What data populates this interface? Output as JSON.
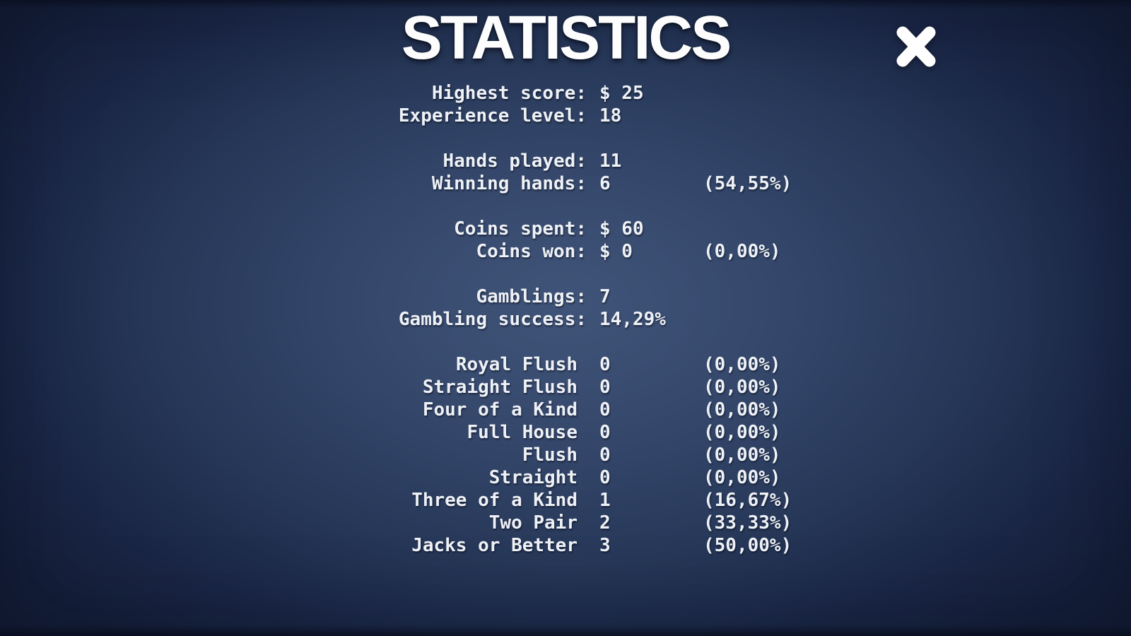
{
  "title": "STATISTICS",
  "icons": {
    "close": "heavy-x-cross"
  },
  "colors": {
    "background_center": "#405479",
    "background_edge": "#141e38",
    "text": "#eef1f6",
    "title": "#fdfdfe"
  },
  "sections": [
    {
      "rows": [
        {
          "label": "Highest score:",
          "value": "$ 25",
          "pct": ""
        },
        {
          "label": "Experience level:",
          "value": "18",
          "pct": ""
        }
      ]
    },
    {
      "rows": [
        {
          "label": "Hands played:",
          "value": "11",
          "pct": ""
        },
        {
          "label": "Winning hands:",
          "value": "6",
          "pct": "(54,55%)"
        }
      ]
    },
    {
      "rows": [
        {
          "label": "Coins spent:",
          "value": "$ 60",
          "pct": ""
        },
        {
          "label": "Coins won:",
          "value": "$ 0",
          "pct": "(0,00%)"
        }
      ]
    },
    {
      "rows": [
        {
          "label": "Gamblings:",
          "value": "7",
          "pct": ""
        },
        {
          "label": "Gambling success:",
          "value": "14,29%",
          "pct": ""
        }
      ]
    },
    {
      "rows": [
        {
          "label": "Royal Flush",
          "value": "0",
          "pct": "(0,00%)"
        },
        {
          "label": "Straight Flush",
          "value": "0",
          "pct": "(0,00%)"
        },
        {
          "label": "Four of a Kind",
          "value": "0",
          "pct": "(0,00%)"
        },
        {
          "label": "Full House",
          "value": "0",
          "pct": "(0,00%)"
        },
        {
          "label": "Flush",
          "value": "0",
          "pct": "(0,00%)"
        },
        {
          "label": "Straight",
          "value": "0",
          "pct": "(0,00%)"
        },
        {
          "label": "Three of a Kind",
          "value": "1",
          "pct": "(16,67%)"
        },
        {
          "label": "Two Pair",
          "value": "2",
          "pct": "(33,33%)"
        },
        {
          "label": "Jacks or Better",
          "value": "3",
          "pct": "(50,00%)"
        }
      ]
    }
  ]
}
